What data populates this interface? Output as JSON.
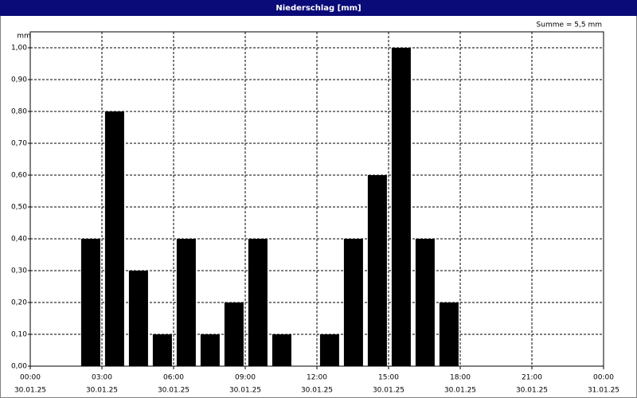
{
  "chart_data": {
    "type": "bar",
    "title": "Niederschlag [mm]",
    "y_unit": "mm",
    "annotation": "Summe = 5,5 mm",
    "x": [
      2,
      3,
      4,
      5,
      6,
      7,
      8,
      9,
      10,
      12,
      13,
      14,
      15,
      16,
      17
    ],
    "values": [
      0.4,
      0.8,
      0.3,
      0.1,
      0.4,
      0.1,
      0.2,
      0.4,
      0.1,
      0.1,
      0.4,
      0.6,
      1.0,
      0.4,
      0.2
    ],
    "color": "#000000",
    "xlim": [
      0,
      24
    ],
    "xticks": [
      {
        "value": 0,
        "label": "00:00"
      },
      {
        "value": 3,
        "label": "03:00"
      },
      {
        "value": 6,
        "label": "06:00"
      },
      {
        "value": 9,
        "label": "09:00"
      },
      {
        "value": 12,
        "label": "12:00"
      },
      {
        "value": 15,
        "label": "15:00"
      },
      {
        "value": 18,
        "label": "18:00"
      },
      {
        "value": 21,
        "label": "21:00"
      },
      {
        "value": 24,
        "label": "00:00"
      }
    ],
    "xtick_dates": [
      "30.01.25",
      "30.01.25",
      "30.01.25",
      "30.01.25",
      "30.01.25",
      "30.01.25",
      "30.01.25",
      "30.01.25",
      "31.01.25"
    ],
    "ylim": [
      0,
      1.05
    ],
    "yticks": [
      {
        "value": 0,
        "label": "0,00"
      },
      {
        "value": 0.1,
        "label": "0,10"
      },
      {
        "value": 0.2,
        "label": "0,20"
      },
      {
        "value": 0.3,
        "label": "0,30"
      },
      {
        "value": 0.4,
        "label": "0,40"
      },
      {
        "value": 0.5,
        "label": "0,50"
      },
      {
        "value": 0.6,
        "label": "0,60"
      },
      {
        "value": 0.7,
        "label": "0,70"
      },
      {
        "value": 0.8,
        "label": "0,80"
      },
      {
        "value": 0.9,
        "label": "0,90"
      },
      {
        "value": 1.0,
        "label": "1,00"
      }
    ],
    "grid": true
  }
}
